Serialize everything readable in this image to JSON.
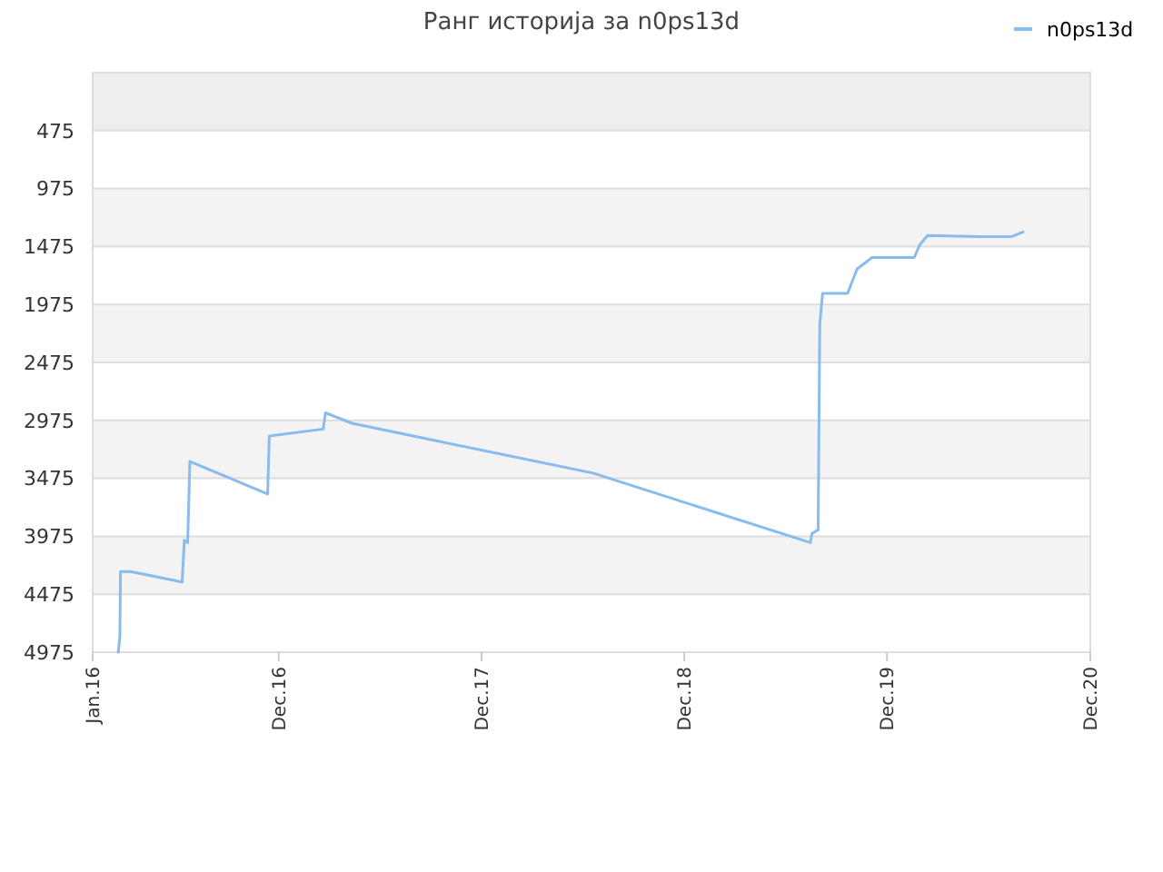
{
  "chart_data": {
    "type": "line",
    "title": "Ранг историја за n0ps13d",
    "series": [
      {
        "name": "n0ps13d",
        "color": "#88bbee",
        "x": [
          "2016-02-16",
          "2016-02-19",
          "2016-02-20",
          "2016-03-09",
          "2016-06-10",
          "2016-06-14",
          "2016-06-20",
          "2016-06-24",
          "2016-11-11",
          "2016-11-14",
          "2017-02-19",
          "2017-02-23",
          "2017-04-12",
          "2017-08-10",
          "2018-06-20",
          "2019-07-16",
          "2019-07-19",
          "2019-07-30",
          "2019-08-02",
          "2019-08-07",
          "2019-09-21",
          "2019-10-08",
          "2019-11-04",
          "2020-01-19",
          "2020-01-29",
          "2020-02-12",
          "2020-05-14",
          "2020-07-12",
          "2020-08-02"
        ],
        "values": [
          4975,
          4840,
          4280,
          4280,
          4370,
          4010,
          4030,
          3330,
          3610,
          3110,
          3050,
          2910,
          3000,
          3120,
          3430,
          4030,
          3950,
          3920,
          2140,
          1880,
          1880,
          1670,
          1570,
          1570,
          1460,
          1380,
          1390,
          1390,
          1350
        ]
      }
    ],
    "bands": [
      {
        "axis": "y",
        "from": -25,
        "to": 475,
        "color": "#eeeeee"
      }
    ],
    "xlim": [
      "2016-01-01",
      "2020-12-01"
    ],
    "xticks": [
      {
        "value": "2016-01-01",
        "label": "Jan.16"
      },
      {
        "value": "2016-12-01",
        "label": "Dec.16"
      },
      {
        "value": "2017-12-01",
        "label": "Dec.17"
      },
      {
        "value": "2018-12-01",
        "label": "Dec.18"
      },
      {
        "value": "2019-12-01",
        "label": "Dec.19"
      },
      {
        "value": "2020-12-01",
        "label": "Dec.20"
      }
    ],
    "ylim": [
      4975,
      -25
    ],
    "yticks": [
      475,
      975,
      1475,
      1975,
      2475,
      2975,
      3475,
      3975,
      4475,
      4975
    ],
    "grid": "y",
    "legend": "top right",
    "line_style": "solid",
    "marker": "none"
  }
}
